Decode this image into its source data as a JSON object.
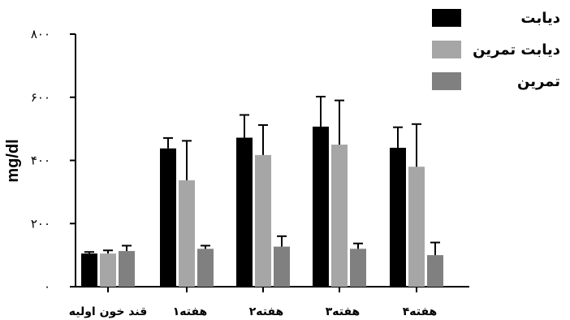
{
  "chart_data": {
    "type": "bar",
    "title": "",
    "xlabel": "",
    "ylabel": "mg/dl",
    "ylim": [
      0,
      800
    ],
    "y_ticks": [
      0,
      200,
      400,
      600,
      800
    ],
    "y_tick_labels": [
      "۰",
      "۲۰۰",
      "۴۰۰",
      "۶۰۰",
      "۸۰۰"
    ],
    "categories": [
      "قند خون اولیه",
      "هفته۱",
      "هفته۲",
      "هفته۳",
      "هفته۴"
    ],
    "series": [
      {
        "name": "دیابت",
        "color": "#000000",
        "values": [
          105,
          438,
          472,
          507,
          440
        ],
        "errors": [
          5,
          33,
          72,
          95,
          65
        ]
      },
      {
        "name": "دیابت تمرین",
        "color": "#a6a6a6",
        "values": [
          105,
          337,
          417,
          450,
          380
        ],
        "errors": [
          10,
          125,
          95,
          140,
          135
        ]
      },
      {
        "name": "تمرین",
        "color": "#808080",
        "values": [
          113,
          120,
          127,
          120,
          100
        ],
        "errors": [
          17,
          10,
          33,
          17,
          40
        ]
      }
    ],
    "legend_position": "top-right",
    "grid": false
  }
}
